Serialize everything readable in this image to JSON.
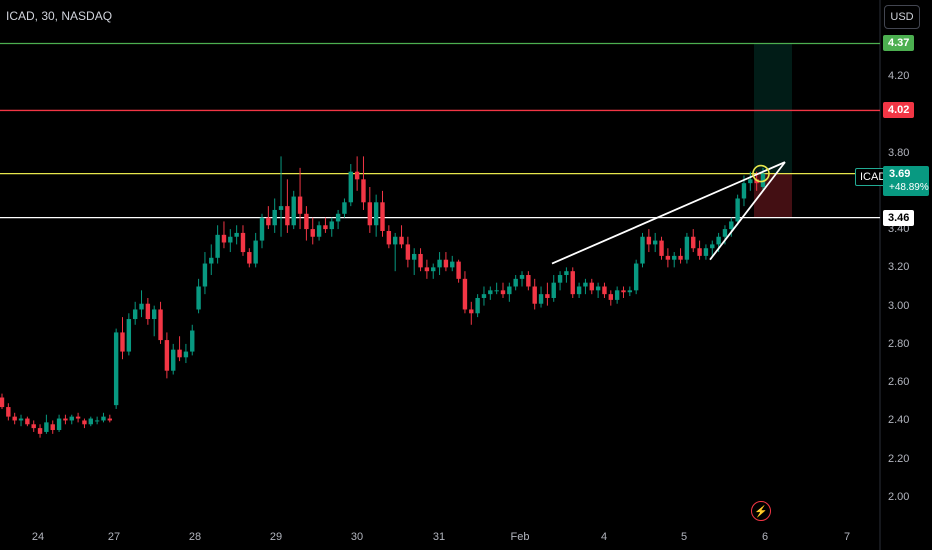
{
  "header": {
    "symbol_line": "ICAD, 30, NASDAQ"
  },
  "currency_button": "USD",
  "price_axis": {
    "ticks": [
      "4.20",
      "4.00",
      "3.80",
      "3.60",
      "3.40",
      "3.20",
      "3.00",
      "2.80",
      "2.60",
      "2.40",
      "2.20",
      "2.00"
    ],
    "tick_values": [
      4.2,
      4.0,
      3.8,
      3.6,
      3.4,
      3.2,
      3.0,
      2.8,
      2.6,
      2.4,
      2.2,
      2.0
    ]
  },
  "time_axis": {
    "ticks": [
      "24",
      "27",
      "28",
      "29",
      "30",
      "31",
      "Feb",
      "4",
      "5",
      "6",
      "7"
    ]
  },
  "levels": {
    "target": {
      "label": "4.37",
      "value": 4.37,
      "color": "#4caf50"
    },
    "resistance": {
      "label": "4.02",
      "value": 4.02,
      "color": "#f23645"
    },
    "entry": {
      "value": 3.69,
      "color": "#e6e64c"
    },
    "support": {
      "label": "3.46",
      "value": 3.46,
      "color": "#ffffff"
    }
  },
  "current": {
    "symbol": "ICAD",
    "price": "3.69",
    "change": "+48.89%",
    "color": "#089981"
  },
  "colors": {
    "up": "#089981",
    "down": "#f23645",
    "background": "#000000"
  },
  "icons": {
    "alerts": "lightning-icon"
  },
  "chart_data": {
    "type": "candlestick",
    "symbol": "ICAD",
    "interval": "30",
    "exchange": "NASDAQ",
    "ylim": [
      1.95,
      4.42
    ],
    "horizontal_lines": [
      4.37,
      4.02,
      3.69,
      3.46
    ],
    "candles": [
      [
        2.52,
        2.54,
        2.46,
        2.47
      ],
      [
        2.47,
        2.49,
        2.4,
        2.42
      ],
      [
        2.42,
        2.44,
        2.38,
        2.4
      ],
      [
        2.4,
        2.43,
        2.37,
        2.41
      ],
      [
        2.41,
        2.42,
        2.37,
        2.38
      ],
      [
        2.38,
        2.4,
        2.34,
        2.36
      ],
      [
        2.36,
        2.38,
        2.31,
        2.33
      ],
      [
        2.34,
        2.43,
        2.33,
        2.39
      ],
      [
        2.38,
        2.4,
        2.33,
        2.35
      ],
      [
        2.35,
        2.43,
        2.34,
        2.41
      ],
      [
        2.41,
        2.43,
        2.38,
        2.4
      ],
      [
        2.4,
        2.43,
        2.38,
        2.42
      ],
      [
        2.42,
        2.44,
        2.39,
        2.41
      ],
      [
        2.4,
        2.41,
        2.36,
        2.38
      ],
      [
        2.38,
        2.42,
        2.37,
        2.41
      ],
      [
        2.4,
        2.42,
        2.38,
        2.4
      ],
      [
        2.4,
        2.44,
        2.39,
        2.42
      ],
      [
        2.41,
        2.43,
        2.39,
        2.4
      ],
      [
        2.48,
        2.88,
        2.46,
        2.86
      ],
      [
        2.86,
        2.94,
        2.72,
        2.76
      ],
      [
        2.76,
        2.96,
        2.74,
        2.93
      ],
      [
        2.93,
        3.02,
        2.9,
        2.98
      ],
      [
        2.98,
        3.08,
        2.94,
        3.01
      ],
      [
        3.01,
        3.04,
        2.9,
        2.93
      ],
      [
        2.93,
        3.0,
        2.84,
        2.98
      ],
      [
        2.98,
        3.02,
        2.8,
        2.82
      ],
      [
        2.82,
        2.86,
        2.62,
        2.66
      ],
      [
        2.66,
        2.8,
        2.64,
        2.77
      ],
      [
        2.77,
        2.84,
        2.71,
        2.73
      ],
      [
        2.73,
        2.8,
        2.7,
        2.76
      ],
      [
        2.76,
        2.9,
        2.74,
        2.87
      ],
      [
        2.98,
        3.14,
        2.96,
        3.1
      ],
      [
        3.1,
        3.28,
        3.06,
        3.22
      ],
      [
        3.22,
        3.32,
        3.16,
        3.25
      ],
      [
        3.25,
        3.42,
        3.22,
        3.37
      ],
      [
        3.37,
        3.44,
        3.3,
        3.33
      ],
      [
        3.33,
        3.4,
        3.28,
        3.36
      ],
      [
        3.36,
        3.42,
        3.32,
        3.38
      ],
      [
        3.38,
        3.42,
        3.26,
        3.28
      ],
      [
        3.28,
        3.3,
        3.2,
        3.22
      ],
      [
        3.22,
        3.38,
        3.2,
        3.34
      ],
      [
        3.34,
        3.48,
        3.3,
        3.46
      ],
      [
        3.46,
        3.52,
        3.4,
        3.42
      ],
      [
        3.42,
        3.56,
        3.38,
        3.5
      ],
      [
        3.5,
        3.78,
        3.36,
        3.52
      ],
      [
        3.52,
        3.66,
        3.38,
        3.42
      ],
      [
        3.42,
        3.6,
        3.4,
        3.57
      ],
      [
        3.57,
        3.72,
        3.4,
        3.48
      ],
      [
        3.48,
        3.52,
        3.34,
        3.4
      ],
      [
        3.4,
        3.46,
        3.32,
        3.36
      ],
      [
        3.36,
        3.44,
        3.34,
        3.42
      ],
      [
        3.42,
        3.46,
        3.38,
        3.4
      ],
      [
        3.4,
        3.46,
        3.36,
        3.44
      ],
      [
        3.44,
        3.5,
        3.4,
        3.48
      ],
      [
        3.48,
        3.56,
        3.46,
        3.54
      ],
      [
        3.54,
        3.74,
        3.52,
        3.7
      ],
      [
        3.7,
        3.78,
        3.6,
        3.66
      ],
      [
        3.66,
        3.78,
        3.5,
        3.54
      ],
      [
        3.54,
        3.62,
        3.38,
        3.42
      ],
      [
        3.42,
        3.58,
        3.36,
        3.54
      ],
      [
        3.54,
        3.6,
        3.36,
        3.39
      ],
      [
        3.39,
        3.42,
        3.3,
        3.32
      ],
      [
        3.32,
        3.38,
        3.18,
        3.36
      ],
      [
        3.36,
        3.42,
        3.3,
        3.32
      ],
      [
        3.32,
        3.36,
        3.2,
        3.24
      ],
      [
        3.24,
        3.3,
        3.16,
        3.27
      ],
      [
        3.27,
        3.3,
        3.18,
        3.2
      ],
      [
        3.2,
        3.24,
        3.14,
        3.18
      ],
      [
        3.18,
        3.22,
        3.14,
        3.2
      ],
      [
        3.2,
        3.28,
        3.16,
        3.24
      ],
      [
        3.24,
        3.28,
        3.18,
        3.2
      ],
      [
        3.2,
        3.26,
        3.18,
        3.23
      ],
      [
        3.23,
        3.24,
        3.12,
        3.14
      ],
      [
        3.14,
        3.18,
        2.96,
        2.98
      ],
      [
        2.98,
        3.02,
        2.9,
        2.96
      ],
      [
        2.96,
        3.06,
        2.94,
        3.04
      ],
      [
        3.04,
        3.1,
        3.0,
        3.06
      ],
      [
        3.06,
        3.1,
        3.03,
        3.08
      ],
      [
        3.08,
        3.12,
        3.06,
        3.08
      ],
      [
        3.08,
        3.12,
        3.04,
        3.06
      ],
      [
        3.06,
        3.12,
        3.02,
        3.1
      ],
      [
        3.1,
        3.16,
        3.08,
        3.14
      ],
      [
        3.14,
        3.18,
        3.1,
        3.16
      ],
      [
        3.16,
        3.18,
        3.08,
        3.1
      ],
      [
        3.1,
        3.14,
        2.98,
        3.01
      ],
      [
        3.01,
        3.1,
        2.99,
        3.06
      ],
      [
        3.06,
        3.12,
        3.0,
        3.04
      ],
      [
        3.04,
        3.16,
        3.02,
        3.12
      ],
      [
        3.12,
        3.18,
        3.08,
        3.16
      ],
      [
        3.16,
        3.2,
        3.12,
        3.18
      ],
      [
        3.18,
        3.2,
        3.04,
        3.06
      ],
      [
        3.06,
        3.12,
        3.04,
        3.1
      ],
      [
        3.1,
        3.14,
        3.06,
        3.12
      ],
      [
        3.12,
        3.14,
        3.06,
        3.08
      ],
      [
        3.08,
        3.12,
        3.04,
        3.1
      ],
      [
        3.1,
        3.12,
        3.04,
        3.06
      ],
      [
        3.06,
        3.08,
        3.0,
        3.03
      ],
      [
        3.03,
        3.1,
        3.01,
        3.08
      ],
      [
        3.08,
        3.1,
        3.04,
        3.07
      ],
      [
        3.07,
        3.1,
        3.05,
        3.08
      ],
      [
        3.08,
        3.24,
        3.06,
        3.22
      ],
      [
        3.22,
        3.38,
        3.2,
        3.36
      ],
      [
        3.36,
        3.4,
        3.28,
        3.32
      ],
      [
        3.32,
        3.38,
        3.28,
        3.34
      ],
      [
        3.34,
        3.36,
        3.24,
        3.26
      ],
      [
        3.26,
        3.3,
        3.2,
        3.24
      ],
      [
        3.24,
        3.28,
        3.2,
        3.26
      ],
      [
        3.26,
        3.3,
        3.22,
        3.24
      ],
      [
        3.24,
        3.38,
        3.22,
        3.36
      ],
      [
        3.36,
        3.4,
        3.28,
        3.3
      ],
      [
        3.3,
        3.34,
        3.24,
        3.26
      ],
      [
        3.26,
        3.32,
        3.24,
        3.3
      ],
      [
        3.3,
        3.34,
        3.26,
        3.32
      ],
      [
        3.32,
        3.38,
        3.28,
        3.36
      ],
      [
        3.36,
        3.42,
        3.32,
        3.4
      ],
      [
        3.4,
        3.46,
        3.36,
        3.44
      ],
      [
        3.44,
        3.58,
        3.42,
        3.56
      ],
      [
        3.56,
        3.68,
        3.52,
        3.64
      ],
      [
        3.64,
        3.7,
        3.6,
        3.66
      ],
      [
        3.66,
        3.7,
        3.6,
        3.64
      ],
      [
        3.62,
        3.72,
        3.6,
        3.69
      ]
    ],
    "trendlines": [
      {
        "from": [
          552,
          3.22
        ],
        "to": [
          785,
          3.75
        ]
      },
      {
        "from": [
          710,
          3.24
        ],
        "to": [
          785,
          3.75
        ]
      }
    ],
    "position": {
      "entry": 3.69,
      "target": 4.37,
      "stop": 3.46
    }
  }
}
